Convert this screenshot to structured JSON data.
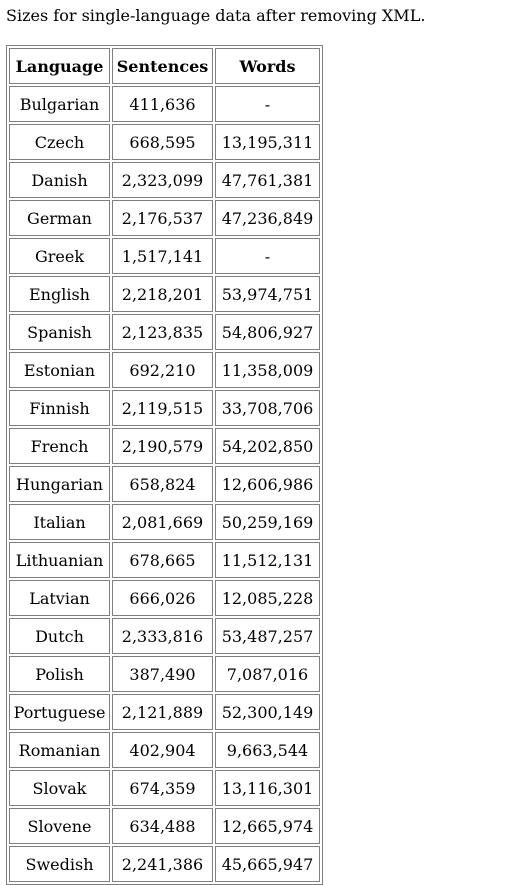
{
  "caption": "Sizes for single-language data after removing XML.",
  "table": {
    "headers": [
      "Language",
      "Sentences",
      "Words"
    ],
    "rows": [
      [
        "Bulgarian",
        "411,636",
        "-"
      ],
      [
        "Czech",
        "668,595",
        "13,195,311"
      ],
      [
        "Danish",
        "2,323,099",
        "47,761,381"
      ],
      [
        "German",
        "2,176,537",
        "47,236,849"
      ],
      [
        "Greek",
        "1,517,141",
        "-"
      ],
      [
        "English",
        "2,218,201",
        "53,974,751"
      ],
      [
        "Spanish",
        "2,123,835",
        "54,806,927"
      ],
      [
        "Estonian",
        "692,210",
        "11,358,009"
      ],
      [
        "Finnish",
        "2,119,515",
        "33,708,706"
      ],
      [
        "French",
        "2,190,579",
        "54,202,850"
      ],
      [
        "Hungarian",
        "658,824",
        "12,606,986"
      ],
      [
        "Italian",
        "2,081,669",
        "50,259,169"
      ],
      [
        "Lithuanian",
        "678,665",
        "11,512,131"
      ],
      [
        "Latvian",
        "666,026",
        "12,085,228"
      ],
      [
        "Dutch",
        "2,333,816",
        "53,487,257"
      ],
      [
        "Polish",
        "387,490",
        "7,087,016"
      ],
      [
        "Portuguese",
        "2,121,889",
        "52,300,149"
      ],
      [
        "Romanian",
        "402,904",
        "9,663,544"
      ],
      [
        "Slovak",
        "674,359",
        "13,116,301"
      ],
      [
        "Slovene",
        "634,488",
        "12,665,974"
      ],
      [
        "Swedish",
        "2,241,386",
        "45,665,947"
      ]
    ]
  }
}
